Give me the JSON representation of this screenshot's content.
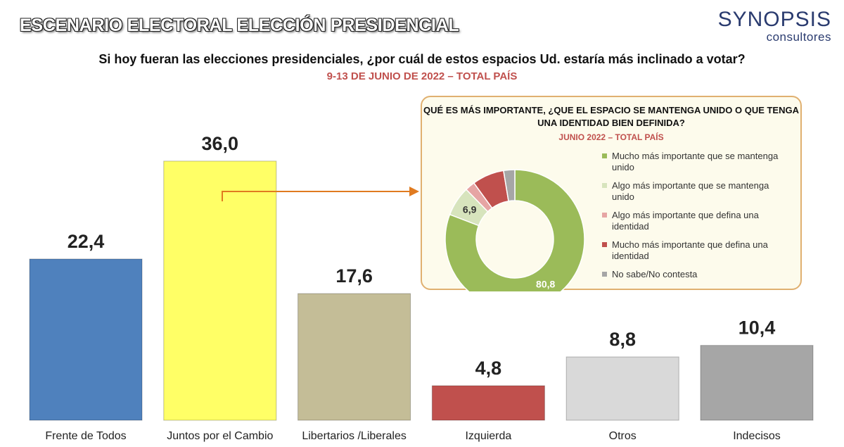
{
  "header": {
    "headline": "ESCENARIO ELECTORAL ELECCIÓN PRESIDENCIAL",
    "logo_main": "SYNOPSIS",
    "logo_sub": "consultores",
    "question": "Si hoy fueran las elecciones presidenciales, ¿por cuál de estos espacios Ud. estaría más inclinado a votar?",
    "date": "9-13 DE JUNIO DE 2022 – TOTAL PAÍS"
  },
  "colors": {
    "accent_red": "#c0504d",
    "arrow": "#e07b20",
    "inset_border": "#e0b070"
  },
  "chart_data": [
    {
      "type": "bar",
      "categories": [
        "Frente de Todos",
        "Juntos por el Cambio",
        "Libertarios /Liberales",
        "Izquierda",
        "Otros",
        "Indecisos"
      ],
      "values": [
        22.4,
        36.0,
        17.6,
        4.8,
        8.8,
        10.4
      ],
      "labels": [
        "22,4",
        "36,0",
        "17,6",
        "4,8",
        "8,8",
        "10,4"
      ],
      "colors": [
        "#4f81bd",
        "#ffff66",
        "#c4bd97",
        "#c0504d",
        "#d9d9d9",
        "#a6a6a6"
      ],
      "ylim": [
        0,
        40
      ],
      "grid": false,
      "legend": "none"
    },
    {
      "type": "pie",
      "donut": true,
      "title": "QUÉ ES MÁS IMPORTANTE, ¿QUE EL ESPACIO SE MANTENGA UNIDO O QUE TENGA UNA IDENTIDAD BIEN DEFINIDA?",
      "subtitle": "JUNIO 2022 – TOTAL PAÍS",
      "labels": [
        "Mucho más importante que se mantenga unido",
        "Algo más importante que se mantenga unido",
        "Algo más importante que defina una identidad",
        "Mucho más importante que defina una identidad",
        "No sabe/No contesta"
      ],
      "values": [
        80.8,
        6.9,
        2.3,
        7.4,
        2.6
      ],
      "value_labels": [
        "80,8",
        "6,9",
        "",
        "",
        ""
      ],
      "colors": [
        "#9bbb59",
        "#d7e4bd",
        "#e6a5a4",
        "#c0504d",
        "#a6a6a6"
      ],
      "legend": "right"
    }
  ]
}
